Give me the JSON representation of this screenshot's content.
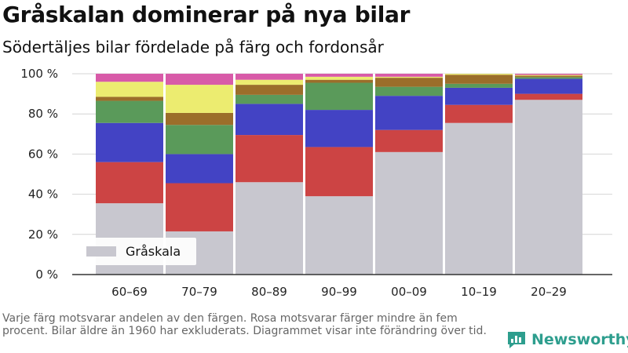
{
  "title": "Gråskalan dominerar på nya bilar",
  "subtitle": "Södertäljes bilar fördelade på färg och fordonsår",
  "footnote": "Varje färg motsvarar andelen av den färgen. Rosa motsvarar färger mindre än fem procent. Bilar äldre än 1960 har exkluderats. Diagrammet visar inte förändring över tid.",
  "brand": "Newsworthy",
  "chart_data": {
    "type": "bar",
    "stacked": true,
    "categories": [
      "60–69",
      "70–79",
      "80–89",
      "90–99",
      "00–09",
      "10–19",
      "20–29"
    ],
    "ylim": [
      0,
      100
    ],
    "yticks": [
      0,
      20,
      40,
      60,
      80,
      100
    ],
    "ytick_labels": [
      "0 %",
      "20 %",
      "40 %",
      "60 %",
      "80 %",
      "100 %"
    ],
    "legend": {
      "label": "Gråskala",
      "placement": "bottom-left"
    },
    "series": [
      {
        "name": "Gråskala",
        "color": "#c8c7cf",
        "values": [
          35.5,
          21.5,
          46,
          39,
          61,
          75.5,
          87
        ]
      },
      {
        "color": "#cc4444",
        "values": [
          20.5,
          24,
          23.5,
          24.5,
          11,
          9,
          3
        ]
      },
      {
        "color": "#4343c4",
        "values": [
          19.5,
          14.5,
          15.5,
          18.5,
          17,
          8.5,
          7.5
        ]
      },
      {
        "color": "#5a9a5a",
        "values": [
          11,
          14.5,
          4.5,
          13.5,
          4.5,
          2,
          0.8
        ]
      },
      {
        "color": "#9b6e2a",
        "values": [
          2,
          6,
          5,
          1.5,
          4.5,
          4.5,
          0.7
        ]
      },
      {
        "color": "#ecec70",
        "values": [
          7.5,
          14,
          2.5,
          1.5,
          0.5,
          0.5,
          0.4
        ]
      },
      {
        "color": "#d85aa8",
        "values": [
          4,
          5.5,
          3,
          1.5,
          1.5,
          0,
          0.6
        ]
      }
    ]
  }
}
